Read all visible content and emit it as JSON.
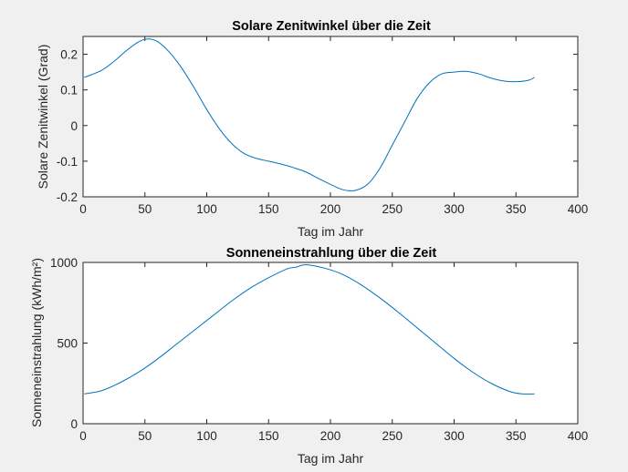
{
  "chart_data": [
    {
      "type": "line",
      "title": "Solare Zenitwinkel über die Zeit",
      "xlabel": "Tag im Jahr",
      "ylabel": "Solare Zenitwinkel (Grad)",
      "xlim": [
        0,
        400
      ],
      "ylim": [
        -0.2,
        0.25
      ],
      "xticks": [
        "0",
        "50",
        "100",
        "150",
        "200",
        "250",
        "300",
        "350",
        "400"
      ],
      "yticks": [
        "-0.2",
        "-0.1",
        "0",
        "0.1",
        "0.2"
      ],
      "grid": false,
      "series": [
        {
          "color": "#0072bd",
          "x": [
            1,
            15,
            25,
            35,
            45,
            52,
            60,
            70,
            80,
            90,
            100,
            110,
            120,
            130,
            140,
            150,
            160,
            170,
            180,
            190,
            200,
            210,
            220,
            230,
            240,
            250,
            260,
            270,
            280,
            290,
            300,
            310,
            320,
            330,
            340,
            350,
            360,
            365
          ],
          "y": [
            0.135,
            0.155,
            0.18,
            0.21,
            0.235,
            0.243,
            0.236,
            0.205,
            0.16,
            0.105,
            0.045,
            -0.008,
            -0.05,
            -0.078,
            -0.092,
            -0.1,
            -0.108,
            -0.118,
            -0.13,
            -0.148,
            -0.165,
            -0.18,
            -0.182,
            -0.165,
            -0.12,
            -0.055,
            0.01,
            0.075,
            0.12,
            0.145,
            0.15,
            0.152,
            0.145,
            0.133,
            0.125,
            0.123,
            0.127,
            0.135
          ]
        }
      ]
    },
    {
      "type": "line",
      "title": "Sonneneinstrahlung über die Zeit",
      "xlabel": "Tag im Jahr",
      "ylabel": "Sonneneinstrahlung (kWh/m²)",
      "xlim": [
        0,
        400
      ],
      "ylim": [
        0,
        1000
      ],
      "xticks": [
        "0",
        "50",
        "100",
        "150",
        "200",
        "250",
        "300",
        "350",
        "400"
      ],
      "yticks": [
        "0",
        "500",
        "1000"
      ],
      "grid": false,
      "series": [
        {
          "color": "#0072bd",
          "x": [
            1,
            15,
            30,
            45,
            60,
            75,
            90,
            105,
            120,
            135,
            150,
            165,
            172,
            180,
            195,
            210,
            225,
            240,
            255,
            270,
            285,
            300,
            315,
            330,
            345,
            355,
            365
          ],
          "y": [
            185,
            205,
            255,
            320,
            400,
            490,
            580,
            670,
            760,
            840,
            905,
            960,
            970,
            985,
            965,
            925,
            860,
            780,
            690,
            595,
            500,
            405,
            320,
            250,
            200,
            185,
            185
          ]
        }
      ]
    }
  ]
}
